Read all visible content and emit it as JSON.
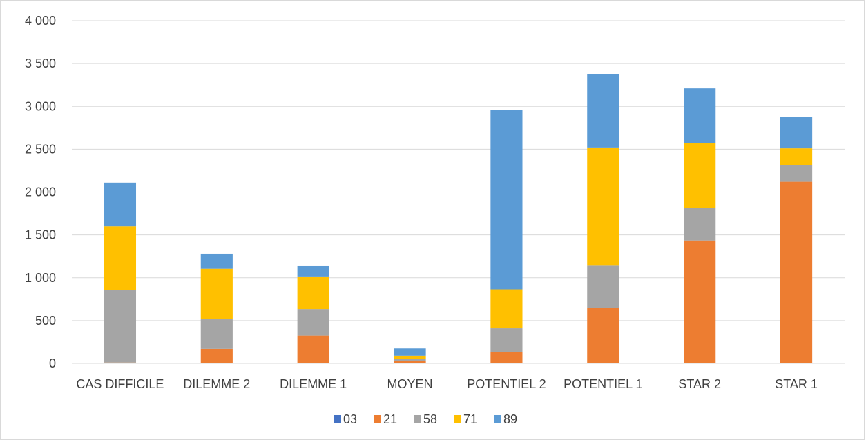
{
  "chart_data": {
    "type": "bar",
    "stacked": true,
    "title": "",
    "xlabel": "",
    "ylabel": "",
    "ylim": [
      0,
      4000
    ],
    "yticks": [
      0,
      500,
      1000,
      1500,
      2000,
      2500,
      3000,
      3500,
      4000
    ],
    "ytick_labels": [
      "0",
      "500",
      "1 000",
      "1 500",
      "2 000",
      "2 500",
      "3 000",
      "3 500",
      "4 000"
    ],
    "grid": true,
    "legend_position": "bottom",
    "categories": [
      "CAS DIFFICILE",
      "DILEMME 2",
      "DILEMME 1",
      "MOYEN",
      "POTENTIEL 2",
      "POTENTIEL 1",
      "STAR 2",
      "STAR 1"
    ],
    "series": [
      {
        "name": "03",
        "color": "#4472c4",
        "values": [
          0,
          0,
          0,
          0,
          0,
          0,
          0,
          0
        ]
      },
      {
        "name": "21",
        "color": "#ed7d31",
        "values": [
          10,
          170,
          325,
          30,
          130,
          645,
          1435,
          2120
        ]
      },
      {
        "name": "58",
        "color": "#a5a5a5",
        "values": [
          850,
          345,
          310,
          25,
          280,
          495,
          380,
          195
        ]
      },
      {
        "name": "71",
        "color": "#ffc000",
        "values": [
          740,
          590,
          380,
          35,
          455,
          1380,
          760,
          195
        ]
      },
      {
        "name": "89",
        "color": "#5b9bd5",
        "values": [
          510,
          175,
          120,
          85,
          2090,
          855,
          635,
          365
        ]
      }
    ]
  }
}
